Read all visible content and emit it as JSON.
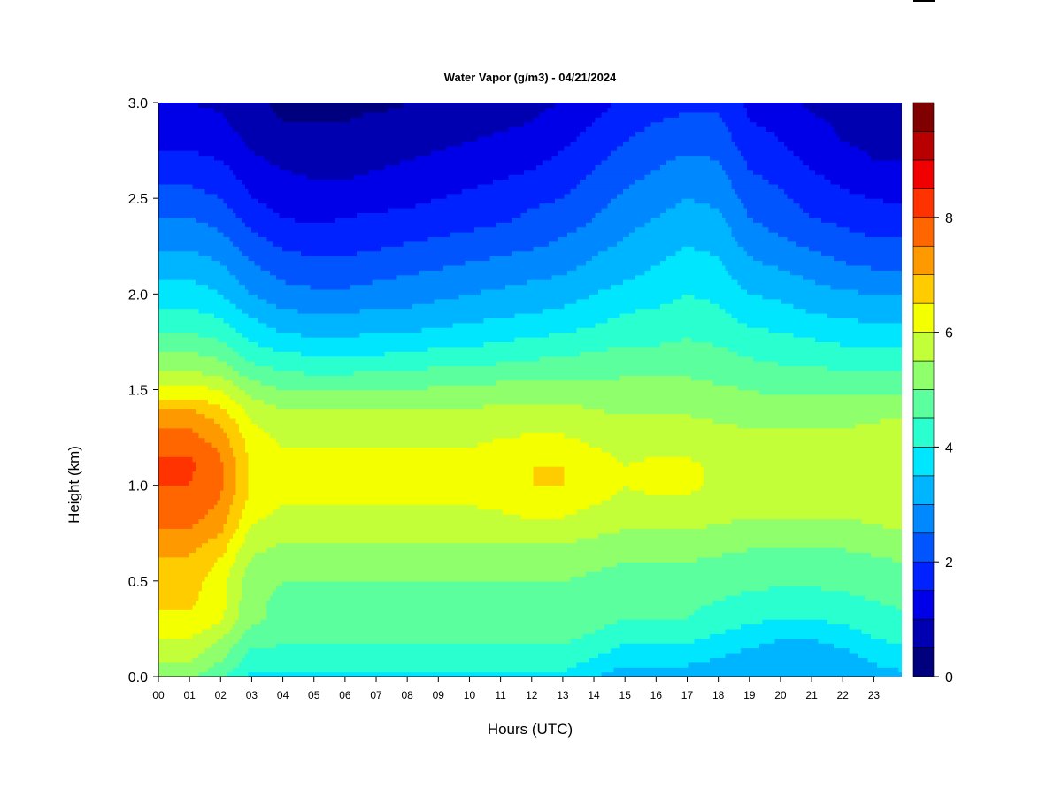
{
  "chart_data": {
    "type": "heatmap",
    "title": "Water Vapor (g/m3) - 04/21/2024",
    "xlabel": "Hours (UTC)",
    "ylabel": "Height (km)",
    "xlim": [
      0,
      23.9
    ],
    "ylim": [
      0.0,
      3.0
    ],
    "x_ticks": [
      0,
      1,
      2,
      3,
      4,
      5,
      6,
      7,
      8,
      9,
      10,
      11,
      12,
      13,
      14,
      15,
      16,
      17,
      18,
      19,
      20,
      21,
      22,
      23
    ],
    "x_tick_labels": [
      "00",
      "01",
      "02",
      "03",
      "04",
      "05",
      "06",
      "07",
      "08",
      "09",
      "10",
      "11",
      "12",
      "13",
      "14",
      "15",
      "16",
      "17",
      "18",
      "19",
      "20",
      "21",
      "22",
      "23"
    ],
    "y_ticks": [
      0.0,
      0.5,
      1.0,
      1.5,
      2.0,
      2.5,
      3.0
    ],
    "y_tick_labels": [
      "0.0",
      "0.5",
      "1.0",
      "1.5",
      "2.0",
      "2.5",
      "3.0"
    ],
    "colorbar": {
      "levels": [
        0,
        0.5,
        1,
        1.5,
        2,
        2.5,
        3,
        3.5,
        4,
        4.5,
        5,
        5.5,
        6,
        6.5,
        7,
        7.5,
        8,
        8.5,
        9,
        9.5
      ],
      "colors": [
        "#00007f",
        "#0000b0",
        "#0000e8",
        "#0022ff",
        "#0055ff",
        "#0088ff",
        "#00b5ff",
        "#00e6ff",
        "#2affd0",
        "#5cff9e",
        "#8fff6b",
        "#c2ff38",
        "#f4ff00",
        "#ffcc00",
        "#ff9900",
        "#ff6600",
        "#ff3300",
        "#f00000",
        "#b80000",
        "#800000"
      ],
      "ticks": [
        0,
        2,
        4,
        6,
        8
      ],
      "tick_labels": [
        "0",
        "2",
        "4",
        "6",
        "8"
      ]
    },
    "height_km": [
      0.0,
      0.1,
      0.2,
      0.3,
      0.4,
      0.5,
      0.6,
      0.7,
      0.8,
      0.9,
      1.0,
      1.1,
      1.2,
      1.3,
      1.4,
      1.5,
      1.6,
      1.7,
      1.8,
      1.9,
      2.0,
      2.1,
      2.2,
      2.3,
      2.4,
      2.5,
      2.6,
      2.7,
      2.8,
      2.9,
      3.0
    ],
    "hours": [
      0,
      1,
      2,
      3,
      4,
      5,
      6,
      7,
      8,
      9,
      10,
      11,
      12,
      13,
      14,
      15,
      16,
      17,
      18,
      19,
      20,
      21,
      22,
      23,
      23.9
    ],
    "profiles_g_m3": [
      [
        5.1,
        5.6,
        6.0,
        6.4,
        6.6,
        6.7,
        6.9,
        7.2,
        7.6,
        7.9,
        8.0,
        8.1,
        7.9,
        7.5,
        7.0,
        6.2,
        5.5,
        5.0,
        4.5,
        4.1,
        3.8,
        3.4,
        3.1,
        2.8,
        2.5,
        2.2,
        1.9,
        1.6,
        1.4,
        1.2,
        1.0
      ],
      [
        5.1,
        5.6,
        6.0,
        6.4,
        6.6,
        6.7,
        6.9,
        7.2,
        7.6,
        7.9,
        8.0,
        8.1,
        7.9,
        7.5,
        7.0,
        6.2,
        5.5,
        5.0,
        4.5,
        4.1,
        3.8,
        3.4,
        3.1,
        2.8,
        2.5,
        2.2,
        1.9,
        1.6,
        1.4,
        1.2,
        1.0
      ],
      [
        4.6,
        5.1,
        5.5,
        6.1,
        6.2,
        6.2,
        6.4,
        6.8,
        7.2,
        7.4,
        7.6,
        7.6,
        7.4,
        7.1,
        6.6,
        6.0,
        5.3,
        4.8,
        4.3,
        3.9,
        3.5,
        3.2,
        2.9,
        2.6,
        2.3,
        2.0,
        1.8,
        1.5,
        1.3,
        1.1,
        0.9
      ],
      [
        3.9,
        4.3,
        4.7,
        5.1,
        5.1,
        5.2,
        5.4,
        5.7,
        6.0,
        6.3,
        6.4,
        6.4,
        6.3,
        6.1,
        5.8,
        5.3,
        4.7,
        4.2,
        3.8,
        3.4,
        3.0,
        2.7,
        2.4,
        2.1,
        1.8,
        1.5,
        1.3,
        1.1,
        0.9,
        0.7,
        0.6
      ],
      [
        3.9,
        4.3,
        4.6,
        4.9,
        4.9,
        5.0,
        5.2,
        5.5,
        5.8,
        6.0,
        6.1,
        6.1,
        6.0,
        5.8,
        5.5,
        5.0,
        4.5,
        4.0,
        3.5,
        3.1,
        2.7,
        2.4,
        2.1,
        1.8,
        1.5,
        1.3,
        1.1,
        0.9,
        0.7,
        0.5,
        0.4
      ],
      [
        3.9,
        4.2,
        4.6,
        4.9,
        4.9,
        5.0,
        5.2,
        5.5,
        5.8,
        6.0,
        6.1,
        6.1,
        6.0,
        5.8,
        5.5,
        5.0,
        4.4,
        3.9,
        3.4,
        3.0,
        2.6,
        2.3,
        2.0,
        1.7,
        1.4,
        1.2,
        1.0,
        0.8,
        0.6,
        0.5,
        0.3
      ],
      [
        3.9,
        4.3,
        4.6,
        4.9,
        4.9,
        5.0,
        5.2,
        5.5,
        5.8,
        6.0,
        6.1,
        6.1,
        6.0,
        5.8,
        5.5,
        5.0,
        4.4,
        3.9,
        3.4,
        3.0,
        2.6,
        2.3,
        2.0,
        1.7,
        1.5,
        1.2,
        1.0,
        0.8,
        0.7,
        0.5,
        0.4
      ],
      [
        3.9,
        4.3,
        4.6,
        4.9,
        4.9,
        5.0,
        5.2,
        5.5,
        5.8,
        6.0,
        6.1,
        6.1,
        6.0,
        5.8,
        5.5,
        5.0,
        4.5,
        3.9,
        3.5,
        3.1,
        2.7,
        2.4,
        2.1,
        1.8,
        1.6,
        1.3,
        1.1,
        0.9,
        0.7,
        0.6,
        0.4
      ],
      [
        3.9,
        4.3,
        4.6,
        4.9,
        4.9,
        5.0,
        5.2,
        5.5,
        5.8,
        6.0,
        6.1,
        6.1,
        6.0,
        5.8,
        5.5,
        5.0,
        4.5,
        4.0,
        3.5,
        3.1,
        2.8,
        2.5,
        2.2,
        1.9,
        1.6,
        1.4,
        1.2,
        1.0,
        0.8,
        0.6,
        0.5
      ],
      [
        3.9,
        4.3,
        4.6,
        4.9,
        4.9,
        5.0,
        5.2,
        5.5,
        5.8,
        6.0,
        6.2,
        6.2,
        6.0,
        5.8,
        5.5,
        5.1,
        4.6,
        4.1,
        3.6,
        3.2,
        2.9,
        2.6,
        2.3,
        2.0,
        1.7,
        1.5,
        1.3,
        1.1,
        0.9,
        0.7,
        0.6
      ],
      [
        3.9,
        4.3,
        4.6,
        4.9,
        4.9,
        5.0,
        5.2,
        5.5,
        5.8,
        6.0,
        6.2,
        6.2,
        6.0,
        5.8,
        5.5,
        5.1,
        4.6,
        4.1,
        3.7,
        3.3,
        3.0,
        2.7,
        2.4,
        2.1,
        1.8,
        1.6,
        1.4,
        1.2,
        1.0,
        0.8,
        0.7
      ],
      [
        3.9,
        4.3,
        4.6,
        4.9,
        4.9,
        5.0,
        5.2,
        5.5,
        5.8,
        6.1,
        6.3,
        6.3,
        6.1,
        5.9,
        5.6,
        5.2,
        4.7,
        4.2,
        3.8,
        3.4,
        3.1,
        2.8,
        2.5,
        2.2,
        1.9,
        1.7,
        1.5,
        1.3,
        1.1,
        0.9,
        0.8
      ],
      [
        3.9,
        4.3,
        4.6,
        5.0,
        5.0,
        5.0,
        5.2,
        5.5,
        5.9,
        6.3,
        6.5,
        6.5,
        6.2,
        5.9,
        5.6,
        5.2,
        4.8,
        4.3,
        3.9,
        3.5,
        3.2,
        2.9,
        2.6,
        2.3,
        2.1,
        1.9,
        1.6,
        1.4,
        1.2,
        1.0,
        0.9
      ],
      [
        3.9,
        4.3,
        4.6,
        4.9,
        4.9,
        5.0,
        5.2,
        5.5,
        5.9,
        6.2,
        6.5,
        6.5,
        6.2,
        5.9,
        5.6,
        5.3,
        4.8,
        4.4,
        4.0,
        3.6,
        3.3,
        3.0,
        2.7,
        2.5,
        2.2,
        2.0,
        1.8,
        1.6,
        1.4,
        1.2,
        1.0
      ],
      [
        3.5,
        4.0,
        4.4,
        4.7,
        4.8,
        4.9,
        5.1,
        5.4,
        5.7,
        6.0,
        6.2,
        6.2,
        6.0,
        5.8,
        5.5,
        5.2,
        4.8,
        4.5,
        4.1,
        3.8,
        3.5,
        3.2,
        3.0,
        2.7,
        2.5,
        2.3,
        2.1,
        1.9,
        1.7,
        1.5,
        1.3
      ],
      [
        3.2,
        3.7,
        4.1,
        4.5,
        4.6,
        4.8,
        5.0,
        5.3,
        5.6,
        5.9,
        6.0,
        6.0,
        5.9,
        5.7,
        5.4,
        5.2,
        4.9,
        4.6,
        4.3,
        4.0,
        3.7,
        3.4,
        3.2,
        3.0,
        2.8,
        2.6,
        2.4,
        2.2,
        2.0,
        1.8,
        1.6
      ],
      [
        3.2,
        3.7,
        4.1,
        4.5,
        4.6,
        4.8,
        5.0,
        5.3,
        5.6,
        5.9,
        6.1,
        6.1,
        5.9,
        5.7,
        5.4,
        5.2,
        4.9,
        4.6,
        4.3,
        4.1,
        3.8,
        3.6,
        3.4,
        3.2,
        3.0,
        2.8,
        2.6,
        2.4,
        2.2,
        2.0,
        1.8
      ],
      [
        3.2,
        3.7,
        4.1,
        4.5,
        4.6,
        4.8,
        5.0,
        5.3,
        5.6,
        5.9,
        6.1,
        6.1,
        5.9,
        5.7,
        5.4,
        5.2,
        4.9,
        4.7,
        4.4,
        4.2,
        4.0,
        3.8,
        3.6,
        3.4,
        3.2,
        3.0,
        2.8,
        2.6,
        2.3,
        2.1,
        1.9
      ],
      [
        3.1,
        3.5,
        3.9,
        4.3,
        4.5,
        4.7,
        4.9,
        5.2,
        5.5,
        5.8,
        5.9,
        5.9,
        5.8,
        5.6,
        5.3,
        5.1,
        4.8,
        4.6,
        4.3,
        4.1,
        3.9,
        3.7,
        3.5,
        3.3,
        3.1,
        2.9,
        2.7,
        2.5,
        2.3,
        2.1,
        1.9
      ],
      [
        3.0,
        3.3,
        3.7,
        4.1,
        4.4,
        4.6,
        4.8,
        5.1,
        5.4,
        5.7,
        5.8,
        5.8,
        5.7,
        5.5,
        5.2,
        5.0,
        4.7,
        4.4,
        4.1,
        3.8,
        3.5,
        3.2,
        3.0,
        2.7,
        2.5,
        2.3,
        2.1,
        1.9,
        1.7,
        1.5,
        1.4
      ],
      [
        3.0,
        3.2,
        3.5,
        4.0,
        4.3,
        4.6,
        4.8,
        5.1,
        5.4,
        5.7,
        5.8,
        5.8,
        5.7,
        5.5,
        5.2,
        4.9,
        4.6,
        4.3,
        4.0,
        3.7,
        3.4,
        3.1,
        2.8,
        2.5,
        2.3,
        2.1,
        1.9,
        1.7,
        1.5,
        1.4,
        1.2
      ],
      [
        3.0,
        3.2,
        3.5,
        4.0,
        4.3,
        4.6,
        4.8,
        5.1,
        5.4,
        5.7,
        5.8,
        5.8,
        5.7,
        5.5,
        5.2,
        4.9,
        4.6,
        4.2,
        3.9,
        3.5,
        3.2,
        2.9,
        2.6,
        2.3,
        2.0,
        1.8,
        1.6,
        1.4,
        1.2,
        1.1,
        0.9
      ],
      [
        3.1,
        3.3,
        3.7,
        4.1,
        4.4,
        4.6,
        4.8,
        5.1,
        5.4,
        5.7,
        5.8,
        5.8,
        5.7,
        5.5,
        5.2,
        4.9,
        4.5,
        4.1,
        3.8,
        3.4,
        3.1,
        2.7,
        2.4,
        2.1,
        1.9,
        1.6,
        1.4,
        1.2,
        1.0,
        0.9,
        0.7
      ],
      [
        3.3,
        3.6,
        4.0,
        4.3,
        4.5,
        4.7,
        4.9,
        5.2,
        5.5,
        5.8,
        5.9,
        5.9,
        5.8,
        5.6,
        5.3,
        4.9,
        4.5,
        4.1,
        3.7,
        3.3,
        3.0,
        2.6,
        2.3,
        2.0,
        1.7,
        1.5,
        1.2,
        1.0,
        0.9,
        0.7,
        0.6
      ],
      [
        3.4,
        3.7,
        4.1,
        4.4,
        4.6,
        4.8,
        5.0,
        5.3,
        5.6,
        5.9,
        6.0,
        6.0,
        5.9,
        5.7,
        5.3,
        4.9,
        4.5,
        4.1,
        3.7,
        3.3,
        3.0,
        2.6,
        2.3,
        2.0,
        1.7,
        1.4,
        1.2,
        1.0,
        0.8,
        0.7,
        0.5
      ]
    ]
  }
}
